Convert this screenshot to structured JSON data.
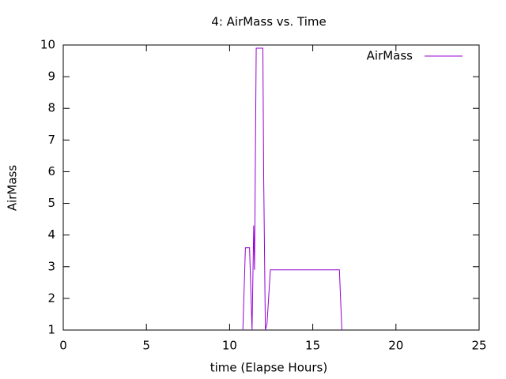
{
  "chart_data": {
    "type": "line",
    "title": "4: AirMass vs. Time",
    "x_label": "time (Elapse Hours)",
    "y_label": "AirMass",
    "x": [
      10.8,
      10.95,
      11.2,
      11.35,
      11.45,
      11.5,
      11.55,
      11.6,
      11.65,
      12.0,
      12.05,
      12.15,
      12.25,
      12.45,
      16.6,
      16.75
    ],
    "series": [
      {
        "name": "AirMass",
        "color": "#9400d3",
        "values": [
          1,
          3.6,
          3.6,
          1,
          4.3,
          2.9,
          6.4,
          9.9,
          9.9,
          9.9,
          5.8,
          1,
          1.2,
          2.9,
          2.9,
          1
        ]
      }
    ],
    "xlim": [
      0,
      25
    ],
    "xticks": [
      0,
      5,
      10,
      15,
      20,
      25
    ],
    "ylim": [
      1,
      10
    ],
    "yticks": [
      1,
      2,
      3,
      4,
      5,
      6,
      7,
      8,
      9,
      10
    ],
    "legend": "top-right"
  }
}
